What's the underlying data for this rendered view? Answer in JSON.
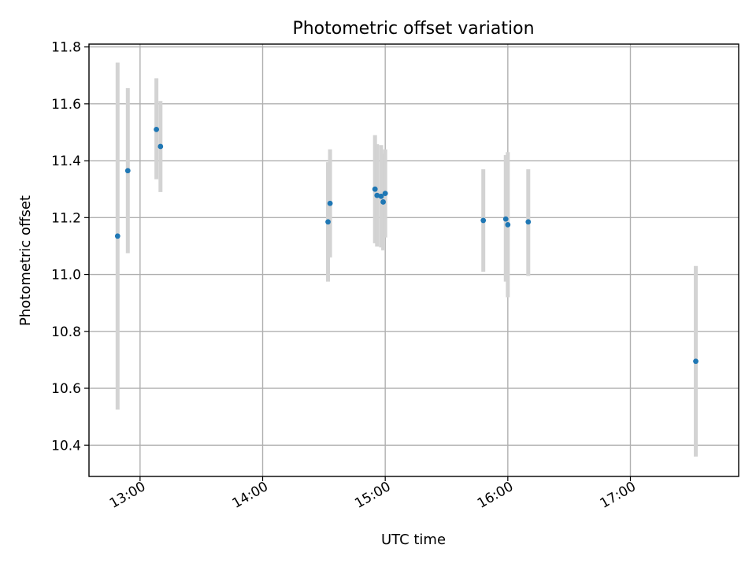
{
  "chart_data": {
    "type": "scatter",
    "title": "Photometric offset variation",
    "xlabel": "UTC time",
    "ylabel": "Photometric offset",
    "x_unit": "UTC hours",
    "xlim": [
      "12:35",
      "17:53"
    ],
    "ylim": [
      10.29,
      11.81
    ],
    "x_ticks": [
      "13:00",
      "14:00",
      "15:00",
      "16:00",
      "17:00"
    ],
    "y_ticks": [
      10.4,
      10.6,
      10.8,
      11.0,
      11.2,
      11.4,
      11.6,
      11.8
    ],
    "y_tick_labels": [
      "10.4",
      "10.6",
      "10.8",
      "11.0",
      "11.2",
      "11.4",
      "11.6",
      "11.8"
    ],
    "grid": true,
    "marker_color": "#1f77b4",
    "errorbar_color": "#d3d3d3",
    "points": [
      {
        "t": "12:49",
        "y": 11.135,
        "lo": 10.525,
        "hi": 11.745
      },
      {
        "t": "12:54",
        "y": 11.365,
        "lo": 11.075,
        "hi": 11.655
      },
      {
        "t": "13:08",
        "y": 11.51,
        "lo": 11.335,
        "hi": 11.69
      },
      {
        "t": "13:10",
        "y": 11.45,
        "lo": 11.29,
        "hi": 11.61
      },
      {
        "t": "14:32",
        "y": 11.185,
        "lo": 10.975,
        "hi": 11.395
      },
      {
        "t": "14:33",
        "y": 11.25,
        "lo": 11.06,
        "hi": 11.44
      },
      {
        "t": "14:55",
        "y": 11.3,
        "lo": 11.11,
        "hi": 11.49
      },
      {
        "t": "14:56",
        "y": 11.278,
        "lo": 11.098,
        "hi": 11.458
      },
      {
        "t": "14:58",
        "y": 11.275,
        "lo": 11.095,
        "hi": 11.455
      },
      {
        "t": "14:59",
        "y": 11.255,
        "lo": 11.085,
        "hi": 11.425
      },
      {
        "t": "15:00",
        "y": 11.285,
        "lo": 11.13,
        "hi": 11.44
      },
      {
        "t": "15:48",
        "y": 11.19,
        "lo": 11.01,
        "hi": 11.37
      },
      {
        "t": "15:59",
        "y": 11.195,
        "lo": 10.975,
        "hi": 11.42
      },
      {
        "t": "16:00",
        "y": 11.175,
        "lo": 10.92,
        "hi": 11.43
      },
      {
        "t": "16:10",
        "y": 11.185,
        "lo": 10.995,
        "hi": 11.37
      },
      {
        "t": "17:32",
        "y": 10.695,
        "lo": 10.36,
        "hi": 11.03
      }
    ]
  }
}
